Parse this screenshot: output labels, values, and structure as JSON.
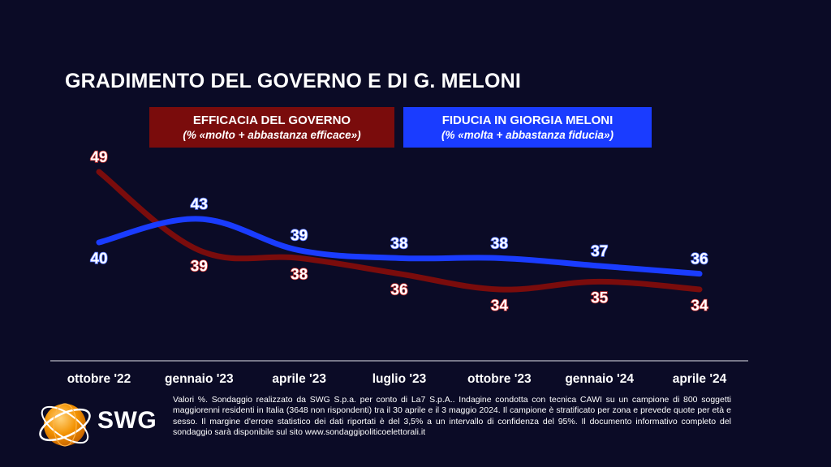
{
  "title": "GRADIMENTO DEL GOVERNO E DI G. MELONI",
  "legend": {
    "efficacia": {
      "label": "EFFICACIA DEL GOVERNO",
      "sub": "(% «molto + abbastanza efficace»)"
    },
    "fiducia": {
      "label": "FIDUCIA IN GIORGIA MELONI",
      "sub": "(% «molta + abbastanza fiducia»)"
    }
  },
  "chart_data": {
    "type": "line",
    "categories": [
      "ottobre '22",
      "gennaio '23",
      "aprile '23",
      "luglio '23",
      "ottobre '23",
      "gennaio '24",
      "aprile '24"
    ],
    "series": [
      {
        "name": "EFFICACIA DEL GOVERNO",
        "color": "#7a0c0c",
        "label_color": "#c62828",
        "values": [
          49,
          39,
          38,
          36,
          34,
          35,
          34
        ]
      },
      {
        "name": "FIDUCIA IN GIORGIA MELONI",
        "color": "#1a3cff",
        "label_color": "#4a6cff",
        "values": [
          40,
          43,
          39,
          38,
          38,
          37,
          36
        ]
      }
    ],
    "grid": false,
    "legend_position": "top"
  },
  "footnote": "Valori %. Sondaggio realizzato da SWG S.p.a. per conto di La7 S.p.A.. Indagine condotta con tecnica CAWI su un campione di 800 soggetti maggiorenni residenti in Italia (3648 non rispondenti) tra il 30 aprile e il 3 maggio 2024. Il campione è stratificato per zona e prevede quote per età e sesso. Il margine d'errore statistico dei dati riportati è del 3,5% a un intervallo di confidenza del 95%. Il documento informativo completo del sondaggio sarà disponibile sul sito www.sondaggipoliticoelettorali.it",
  "logo": {
    "text": "SWG",
    "icon": "swg-globe-icon"
  }
}
